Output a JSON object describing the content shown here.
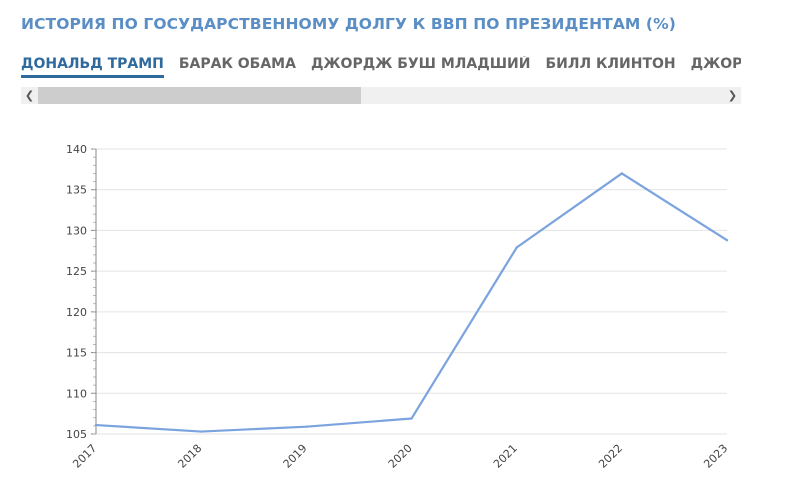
{
  "title": "ИСТОРИЯ ПО ГОСУДАРСТВЕННОМУ ДОЛГУ К ВВП ПО ПРЕЗИДЕНТАМ (%)",
  "tabs": [
    {
      "label": "ДОНАЛЬД ТРАМП",
      "active": true
    },
    {
      "label": "БАРАК ОБАМА",
      "active": false
    },
    {
      "label": "ДЖОРДЖ БУШ МЛАДШИЙ",
      "active": false
    },
    {
      "label": "БИЛЛ КЛИНТОН",
      "active": false
    },
    {
      "label": "ДЖОРДЖ БУШ СТ",
      "active": false
    }
  ],
  "colors": {
    "line": "#7ba3de",
    "title": "#5b8ec5",
    "active_tab": "#2f6a9e"
  },
  "chart_data": {
    "type": "line",
    "x": [
      "2017",
      "2018",
      "2019",
      "2020",
      "2021",
      "2022",
      "2023"
    ],
    "series": [
      {
        "values": [
          106.1,
          105.3,
          105.9,
          106.9,
          127.9,
          137.0,
          128.8
        ]
      }
    ],
    "ylim": [
      105,
      140
    ],
    "yticks": [
      105,
      110,
      115,
      120,
      125,
      130,
      135,
      140
    ],
    "grid": true,
    "title": "",
    "xlabel": "",
    "ylabel": ""
  }
}
